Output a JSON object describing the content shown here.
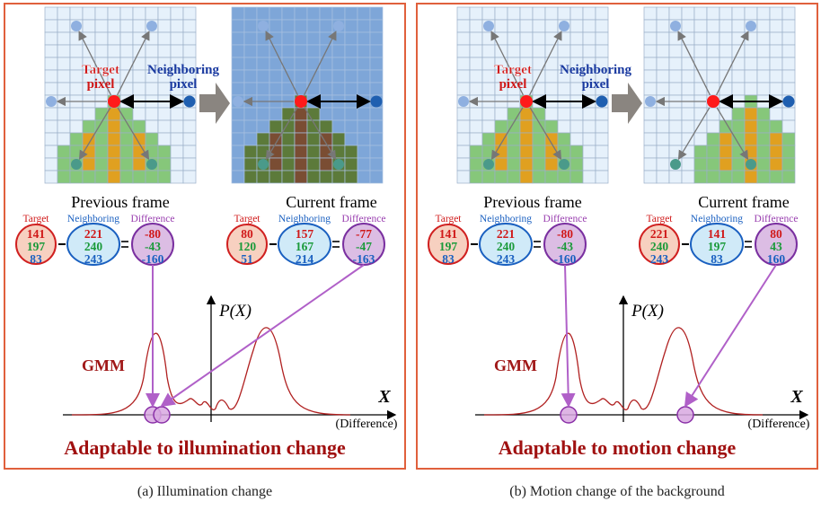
{
  "panels": [
    {
      "target_label": [
        "Target",
        "pixel"
      ],
      "neighbor_label": [
        "Neighboring",
        "pixel"
      ],
      "frames": [
        {
          "title": "Previous frame",
          "legend": [
            "Target",
            "Neighboring",
            "Difference"
          ],
          "target": [
            141,
            197,
            83
          ],
          "neighboring": [
            221,
            240,
            243
          ],
          "difference": [
            -80,
            -43,
            -160
          ]
        },
        {
          "title": "Current frame",
          "legend": [
            "Target",
            "Neighboring",
            "Difference"
          ],
          "target": [
            80,
            120,
            51
          ],
          "neighboring": [
            157,
            167,
            214
          ],
          "difference": [
            -77,
            -47,
            -163
          ]
        }
      ],
      "gmm_label": "GMM",
      "y_label": "P(X)",
      "x_label": "X",
      "x_sublabel": "(Difference)",
      "headline": "Adaptable to illumination change",
      "caption": "(a) Illumination change"
    },
    {
      "target_label": [
        "Target",
        "pixel"
      ],
      "neighbor_label": [
        "Neighboring",
        "pixel"
      ],
      "frames": [
        {
          "title": "Previous frame",
          "legend": [
            "Target",
            "Neighboring",
            "Difference"
          ],
          "target": [
            141,
            197,
            83
          ],
          "neighboring": [
            221,
            240,
            243
          ],
          "difference": [
            -80,
            -43,
            -160
          ]
        },
        {
          "title": "Current frame",
          "legend": [
            "Target",
            "Neighboring",
            "Difference"
          ],
          "target": [
            221,
            240,
            243
          ],
          "neighboring": [
            141,
            197,
            83
          ],
          "difference": [
            80,
            43,
            160
          ]
        }
      ],
      "gmm_label": "GMM",
      "y_label": "P(X)",
      "x_label": "X",
      "x_sublabel": "(Difference)",
      "headline": "Adaptable to motion change",
      "caption": "(b) Motion change of the background"
    }
  ]
}
